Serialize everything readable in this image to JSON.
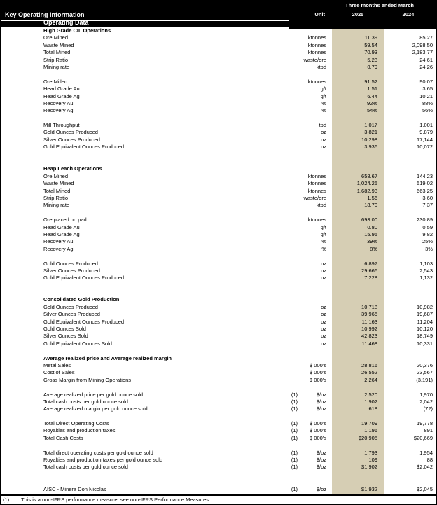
{
  "header": {
    "title": "Key Operating Information",
    "subtitle": "Operating Data",
    "period_label": "Three months ended March",
    "unit_label": "Unit",
    "col_2025": "2025",
    "col_2024": "2024"
  },
  "colors": {
    "accent_column": "#d6ceb4",
    "header_bg": "#000000"
  },
  "rows": [
    {
      "type": "section",
      "label": "High Grade CIL Operations"
    },
    {
      "type": "data",
      "label": "Ore Mined",
      "unit": "ktonnes",
      "v2025": "11.39",
      "v2024": "85.27"
    },
    {
      "type": "data",
      "label": "Waste Mined",
      "unit": "ktonnes",
      "v2025": "59.54",
      "v2024": "2,098.50"
    },
    {
      "type": "data",
      "label": "Total Mined",
      "unit": "ktonnes",
      "v2025": "70.93",
      "v2024": "2,183.77"
    },
    {
      "type": "data",
      "label": "Strip Ratio",
      "unit": "waste/ore",
      "v2025": "5.23",
      "v2024": "24.61"
    },
    {
      "type": "data",
      "label": "Mining rate",
      "unit": "ktpd",
      "v2025": "0.79",
      "v2024": "24.26"
    },
    {
      "type": "blank"
    },
    {
      "type": "data",
      "label": "Ore Milled",
      "unit": "ktonnes",
      "v2025": "91.52",
      "v2024": "90.07"
    },
    {
      "type": "data",
      "label": "Head Grade Au",
      "unit": "g/t",
      "v2025": "1.51",
      "v2024": "3.65"
    },
    {
      "type": "data",
      "label": "Head Grade Ag",
      "unit": "g/t",
      "v2025": "6.44",
      "v2024": "10.21"
    },
    {
      "type": "data",
      "label": "Recovery Au",
      "unit": "%",
      "v2025": "92%",
      "v2024": "88%"
    },
    {
      "type": "data",
      "label": "Recovery Ag",
      "unit": "%",
      "v2025": "54%",
      "v2024": "56%"
    },
    {
      "type": "blank"
    },
    {
      "type": "data",
      "label": "Mill Throughput",
      "unit": "tpd",
      "v2025": "1,017",
      "v2024": "1,001"
    },
    {
      "type": "data",
      "label": "Gold Ounces Produced",
      "unit": "oz",
      "v2025": "3,821",
      "v2024": "9,879"
    },
    {
      "type": "data",
      "label": "Silver Ounces Produced",
      "unit": "oz",
      "v2025": "10,298",
      "v2024": "17,144"
    },
    {
      "type": "data",
      "label": "Gold Equivalent Ounces Produced",
      "unit": "oz",
      "v2025": "3,936",
      "v2024": "10,072"
    },
    {
      "type": "blank"
    },
    {
      "type": "blank"
    },
    {
      "type": "section",
      "label": "Heap Leach Operations"
    },
    {
      "type": "data",
      "label": "Ore Mined",
      "unit": "ktonnes",
      "v2025": "658.67",
      "v2024": "144.23"
    },
    {
      "type": "data",
      "label": "Waste Mined",
      "unit": "ktonnes",
      "v2025": "1,024.25",
      "v2024": "519.02"
    },
    {
      "type": "data",
      "label": "Total Mined",
      "unit": "ktonnes",
      "v2025": "1,682.93",
      "v2024": "663.25"
    },
    {
      "type": "data",
      "label": "Strip Ratio",
      "unit": "waste/ore",
      "v2025": "1.56",
      "v2024": "3.60"
    },
    {
      "type": "data",
      "label": "Mining rate",
      "unit": "ktpd",
      "v2025": "18.70",
      "v2024": "7.37"
    },
    {
      "type": "blank"
    },
    {
      "type": "data",
      "label": "Ore placed on pad",
      "unit": "ktonnes",
      "v2025": "693.00",
      "v2024": "230.89"
    },
    {
      "type": "data",
      "label": "Head Grade Au",
      "unit": "g/t",
      "v2025": "0.80",
      "v2024": "0.59"
    },
    {
      "type": "data",
      "label": "Head Grade Ag",
      "unit": "g/t",
      "v2025": "15.95",
      "v2024": "9.82"
    },
    {
      "type": "data",
      "label": "Recovery Au",
      "unit": "%",
      "v2025": "39%",
      "v2024": "25%"
    },
    {
      "type": "data",
      "label": "Recovery Ag",
      "unit": "%",
      "v2025": "8%",
      "v2024": "3%"
    },
    {
      "type": "blank"
    },
    {
      "type": "data",
      "label": "Gold Ounces Produced",
      "unit": "oz",
      "v2025": "6,897",
      "v2024": "1,103"
    },
    {
      "type": "data",
      "label": "Silver Ounces Produced",
      "unit": "oz",
      "v2025": "29,666",
      "v2024": "2,543"
    },
    {
      "type": "data",
      "label": "Gold Equivalent Ounces Produced",
      "unit": "oz",
      "v2025": "7,228",
      "v2024": "1,132"
    },
    {
      "type": "blank"
    },
    {
      "type": "blank"
    },
    {
      "type": "section",
      "label": "Consolidated Gold Production"
    },
    {
      "type": "data",
      "label": "Gold Ounces Produced",
      "unit": "oz",
      "v2025": "10,718",
      "v2024": "10,982"
    },
    {
      "type": "data",
      "label": "Silver Ounces Produced",
      "unit": "oz",
      "v2025": "39,965",
      "v2024": "19,687"
    },
    {
      "type": "data",
      "label": "Gold Equivalent Ounces Produced",
      "unit": "oz",
      "v2025": "11,163",
      "v2024": "11,204"
    },
    {
      "type": "data",
      "label": "Gold Ounces Sold",
      "unit": "oz",
      "v2025": "10,992",
      "v2024": "10,120"
    },
    {
      "type": "data",
      "label": "Silver Ounces Sold",
      "unit": "oz",
      "v2025": "42,823",
      "v2024": "18,749"
    },
    {
      "type": "data",
      "label": "Gold Equivalent Ounces Sold",
      "unit": "oz",
      "v2025": "11,468",
      "v2024": "10,331"
    },
    {
      "type": "blank"
    },
    {
      "type": "section",
      "label": "Average realized price and Average realized margin"
    },
    {
      "type": "data",
      "label": "Metal Sales",
      "unit": "$ 000's",
      "v2025": "28,816",
      "v2024": "20,376"
    },
    {
      "type": "data",
      "label": "Cost of Sales",
      "unit": "$ 000's",
      "v2025": "26,552",
      "v2024": "23,567"
    },
    {
      "type": "data",
      "label": "Gross Margin from Mining Operations",
      "unit": "$ 000's",
      "v2025": "2,264",
      "v2024": "(3,191)"
    },
    {
      "type": "blank"
    },
    {
      "type": "data",
      "label": "Average realized price per gold ounce sold",
      "note": "(1)",
      "unit": "$/oz",
      "v2025": "2,520",
      "v2024": "1,970"
    },
    {
      "type": "data",
      "label": "Total cash costs per gold ounce sold",
      "note": "(1)",
      "unit": "$/oz",
      "v2025": "1,902",
      "v2024": "2,042"
    },
    {
      "type": "data",
      "label": "Average realized margin per gold ounce sold",
      "note": "(1)",
      "unit": "$/oz",
      "v2025": "618",
      "v2024": "(72)"
    },
    {
      "type": "blank"
    },
    {
      "type": "data",
      "label": "Total Direct Operating Costs",
      "note": "(1)",
      "unit": "$ 000's",
      "v2025": "19,709",
      "v2024": "19,778"
    },
    {
      "type": "data",
      "label": "Royalties and production taxes",
      "note": "(1)",
      "unit": "$ 000's",
      "v2025": "1,196",
      "v2024": "891"
    },
    {
      "type": "data",
      "label": "Total Cash Costs",
      "note": "(1)",
      "unit": "$ 000's",
      "v2025": "$20,905",
      "v2024": "$20,669"
    },
    {
      "type": "blank"
    },
    {
      "type": "data",
      "label": "Total direct operating costs per gold ounce sold",
      "note": "(1)",
      "unit": "$/oz",
      "v2025": "1,793",
      "v2024": "1,954"
    },
    {
      "type": "data",
      "label": "Royalties and production taxes per gold ounce sold",
      "note": "(1)",
      "unit": "$/oz",
      "v2025": "109",
      "v2024": "88"
    },
    {
      "type": "data",
      "label": "Total cash costs per gold ounce sold",
      "note": "(1)",
      "unit": "$/oz",
      "v2025": "$1,902",
      "v2024": "$2,042"
    },
    {
      "type": "blank"
    },
    {
      "type": "blank"
    },
    {
      "type": "data",
      "label": "AISC - Minera Don Nicolas",
      "note": "(1)",
      "unit": "$/oz",
      "v2025": "$1,932",
      "v2024": "$2,045"
    }
  ],
  "footnote": {
    "marker": "(1)",
    "text": "This is a non-IFRS performance measure, see non-IFRS Performance Measures"
  }
}
